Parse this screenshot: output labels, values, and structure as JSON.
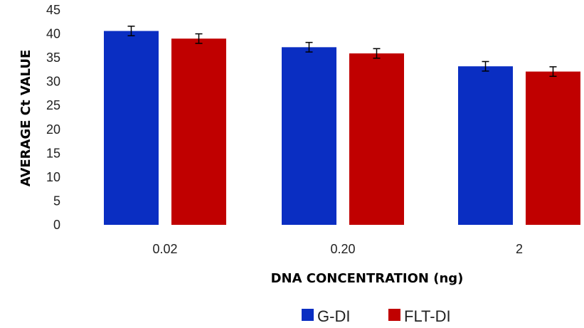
{
  "chart_data": {
    "type": "bar",
    "title": "",
    "xlabel": "DNA CONCENTRATION (ng)",
    "ylabel": "AVERAGE Ct VALUE",
    "ylim": [
      0,
      45
    ],
    "yticks": [
      0,
      5,
      10,
      15,
      20,
      25,
      30,
      35,
      40,
      45
    ],
    "categories": [
      "0.02",
      "0.20",
      "2"
    ],
    "series": [
      {
        "name": "G-DI",
        "color": "#0a2ec2",
        "values": [
          40.6,
          37.2,
          33.2
        ],
        "error": [
          1.0,
          1.0,
          1.0
        ]
      },
      {
        "name": "FLT-DI",
        "color": "#c00000",
        "values": [
          39.0,
          35.9,
          32.1
        ],
        "error": [
          1.0,
          1.0,
          1.0
        ]
      }
    ],
    "grid": false,
    "legend_position": "bottom"
  }
}
